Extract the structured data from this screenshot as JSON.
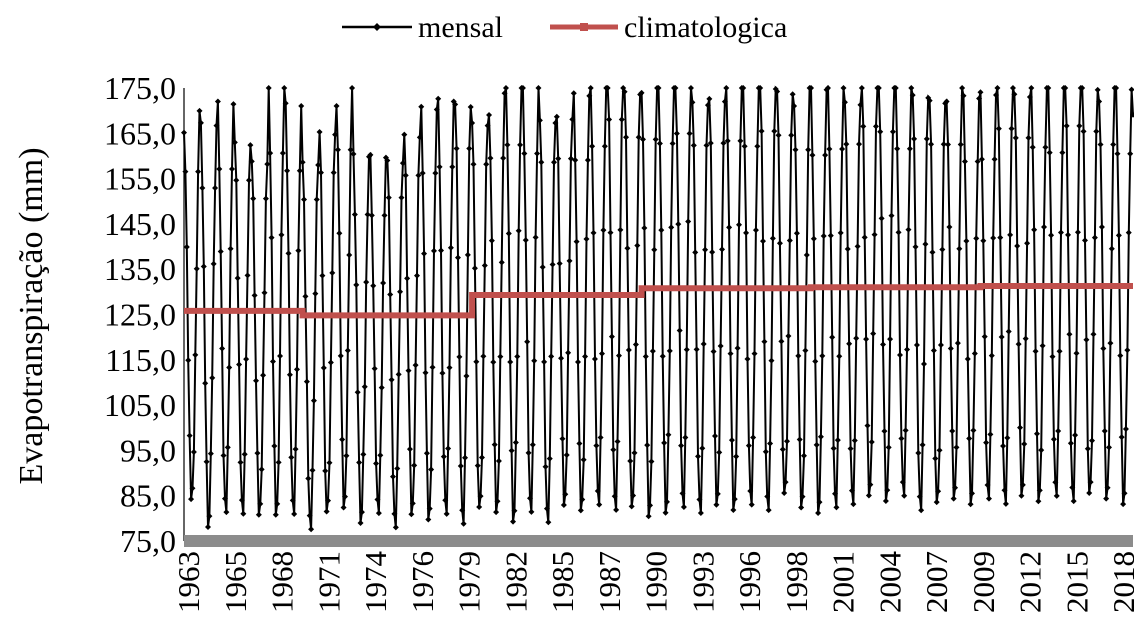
{
  "chart_data": {
    "type": "line",
    "title": "",
    "xlabel": "",
    "ylabel": "Evapotranspiração (mm)",
    "ylim": [
      75,
      175
    ],
    "grid": false,
    "legend_position": "top-center",
    "yticks": [
      "75,0",
      "85,0",
      "95,0",
      "105,0",
      "115,0",
      "125,0",
      "135,0",
      "145,0",
      "155,0",
      "165,0",
      "175,0"
    ],
    "xticks": [
      "1963",
      "1965",
      "1968",
      "1971",
      "1974",
      "1976",
      "1979",
      "1982",
      "1985",
      "1987",
      "1990",
      "1993",
      "1996",
      "1998",
      "2001",
      "2004",
      "2007",
      "2009",
      "2012",
      "2015",
      "2018"
    ],
    "x_range": [
      1963,
      2019
    ],
    "series": [
      {
        "name": "mensal",
        "color": "#000000",
        "marker": "diamond",
        "monthly_pattern": "seasonal cycle, one value per month 1963-2019",
        "annual_peaks": [
          169,
          167,
          173,
          165,
          162,
          175,
          172,
          160,
          168,
          175,
          160,
          161,
          161,
          168,
          170,
          173,
          173,
          170,
          173,
          178,
          177,
          170,
          172,
          173,
          178,
          180,
          177,
          178,
          178,
          182,
          174,
          176,
          178,
          178,
          177,
          177,
          175,
          175,
          178,
          174,
          180,
          180,
          177,
          175,
          175,
          176,
          173,
          175,
          178,
          177,
          176,
          176,
          178,
          178,
          176,
          175,
          170
        ],
        "annual_troughs": [
          84,
          79,
          81,
          82,
          80,
          81,
          80,
          78,
          80,
          82,
          80,
          81,
          79,
          80,
          80,
          80,
          79,
          81,
          81,
          80,
          81,
          80,
          82,
          82,
          82,
          82,
          81,
          80,
          82,
          82,
          82,
          82,
          82,
          82,
          82,
          84,
          82,
          82,
          82,
          84,
          84,
          84,
          84,
          82,
          82,
          84,
          84,
          84,
          84,
          84,
          84,
          84,
          84,
          84,
          84,
          84,
          82
        ]
      },
      {
        "name": "climatologica",
        "color": "#c0504d",
        "marker": "square",
        "segments": [
          {
            "from": 1963,
            "to": 1970,
            "value": 125.8
          },
          {
            "from": 1970,
            "to": 1980,
            "value": 124.8
          },
          {
            "from": 1980,
            "to": 1990,
            "value": 129.3
          },
          {
            "from": 1990,
            "to": 2000,
            "value": 130.8
          },
          {
            "from": 2000,
            "to": 2010,
            "value": 131.0
          },
          {
            "from": 2010,
            "to": 2019,
            "value": 131.3
          }
        ]
      }
    ]
  }
}
